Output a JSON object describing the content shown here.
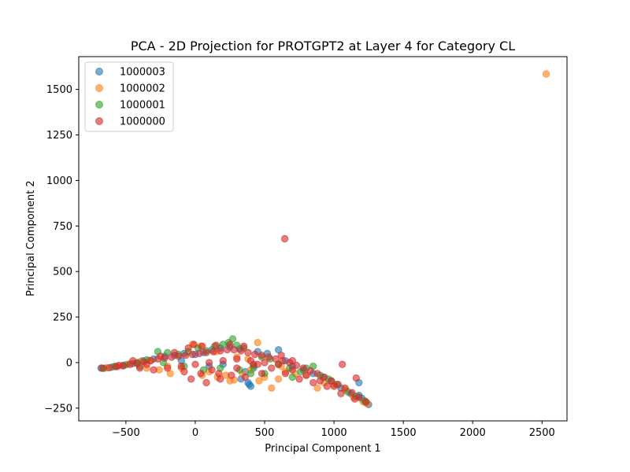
{
  "chart_data": {
    "type": "scatter",
    "title": "PCA - 2D Projection for PROTGPT2 at Layer 4 for Category CL",
    "xlabel": "Principal Component 1",
    "ylabel": "Principal Component 2",
    "xlim": [
      -840,
      2680
    ],
    "ylim": [
      -320,
      1680
    ],
    "xticks": [
      -500,
      0,
      500,
      1000,
      1500,
      2000,
      2500
    ],
    "xtick_labels": [
      "−500",
      "0",
      "500",
      "1000",
      "1500",
      "2000",
      "2500"
    ],
    "yticks": [
      -250,
      0,
      250,
      500,
      750,
      1000,
      1250,
      1500
    ],
    "ytick_labels": [
      "−250",
      "0",
      "250",
      "500",
      "750",
      "1000",
      "1250",
      "1500"
    ],
    "legend_position": "top-left",
    "series": [
      {
        "name": "1000003",
        "color": "#1f77b4",
        "points": [
          [
            -680,
            -30
          ],
          [
            -600,
            -25
          ],
          [
            -520,
            -15
          ],
          [
            -450,
            -5
          ],
          [
            -380,
            10
          ],
          [
            -300,
            20
          ],
          [
            -220,
            35
          ],
          [
            -150,
            40
          ],
          [
            -80,
            50
          ],
          [
            0,
            45
          ],
          [
            60,
            55
          ],
          [
            120,
            70
          ],
          [
            180,
            80
          ],
          [
            250,
            85
          ],
          [
            320,
            75
          ],
          [
            380,
            -110
          ],
          [
            400,
            -130
          ],
          [
            390,
            -120
          ],
          [
            450,
            60
          ],
          [
            520,
            50
          ],
          [
            600,
            70
          ],
          [
            650,
            10
          ],
          [
            700,
            -20
          ],
          [
            780,
            -40
          ],
          [
            850,
            -60
          ],
          [
            920,
            -80
          ],
          [
            980,
            -100
          ],
          [
            1050,
            -140
          ],
          [
            1120,
            -170
          ],
          [
            1180,
            -180
          ],
          [
            1200,
            -195
          ],
          [
            1230,
            -220
          ],
          [
            1250,
            -230
          ],
          [
            1180,
            -110
          ],
          [
            330,
            -90
          ],
          [
            360,
            -50
          ],
          [
            420,
            -30
          ],
          [
            100,
            -20
          ],
          [
            200,
            -10
          ],
          [
            -100,
            10
          ]
        ]
      },
      {
        "name": "1000002",
        "color": "#ff7f0e",
        "points": [
          [
            -640,
            -28
          ],
          [
            -560,
            -22
          ],
          [
            -480,
            -8
          ],
          [
            -400,
            5
          ],
          [
            -330,
            12
          ],
          [
            -260,
            -40
          ],
          [
            -180,
            -60
          ],
          [
            -100,
            -30
          ],
          [
            -20,
            100
          ],
          [
            40,
            90
          ],
          [
            100,
            -50
          ],
          [
            160,
            -80
          ],
          [
            220,
            -70
          ],
          [
            280,
            -95
          ],
          [
            340,
            -60
          ],
          [
            400,
            -40
          ],
          [
            450,
            110
          ],
          [
            500,
            -80
          ],
          [
            550,
            -140
          ],
          [
            600,
            -90
          ],
          [
            650,
            -50
          ],
          [
            720,
            -60
          ],
          [
            800,
            -70
          ],
          [
            880,
            -140
          ],
          [
            930,
            -110
          ],
          [
            1000,
            -120
          ],
          [
            1080,
            -150
          ],
          [
            1140,
            -190
          ],
          [
            1210,
            -215
          ],
          [
            1240,
            -225
          ],
          [
            2530,
            1585
          ],
          [
            150,
            60
          ],
          [
            300,
            30
          ],
          [
            380,
            20
          ],
          [
            -200,
            -20
          ],
          [
            -350,
            -30
          ],
          [
            50,
            -70
          ],
          [
            250,
            -100
          ],
          [
            460,
            -100
          ],
          [
            620,
            -20
          ]
        ]
      },
      {
        "name": "1000001",
        "color": "#2ca02c",
        "points": [
          [
            -660,
            -32
          ],
          [
            -580,
            -20
          ],
          [
            -500,
            -12
          ],
          [
            -420,
            0
          ],
          [
            -350,
            15
          ],
          [
            -270,
            60
          ],
          [
            -200,
            55
          ],
          [
            -120,
            45
          ],
          [
            -50,
            60
          ],
          [
            20,
            80
          ],
          [
            80,
            65
          ],
          [
            140,
            90
          ],
          [
            200,
            100
          ],
          [
            240,
            110
          ],
          [
            270,
            130
          ],
          [
            300,
            95
          ],
          [
            350,
            80
          ],
          [
            420,
            -20
          ],
          [
            480,
            30
          ],
          [
            540,
            20
          ],
          [
            600,
            -10
          ],
          [
            680,
            -30
          ],
          [
            760,
            -50
          ],
          [
            850,
            -20
          ],
          [
            900,
            -70
          ],
          [
            960,
            -90
          ],
          [
            1020,
            -120
          ],
          [
            1100,
            -160
          ],
          [
            1160,
            -185
          ],
          [
            1220,
            -210
          ],
          [
            400,
            -60
          ],
          [
            320,
            -40
          ],
          [
            180,
            -30
          ],
          [
            60,
            -40
          ],
          [
            -80,
            -20
          ],
          [
            -230,
            0
          ],
          [
            -400,
            -20
          ],
          [
            500,
            -60
          ],
          [
            700,
            -80
          ],
          [
            800,
            -30
          ]
        ]
      },
      {
        "name": "1000000",
        "color": "#d62728",
        "points": [
          [
            -670,
            -30
          ],
          [
            -620,
            -28
          ],
          [
            -570,
            -22
          ],
          [
            -520,
            -18
          ],
          [
            -470,
            -10
          ],
          [
            -420,
            -5
          ],
          [
            -370,
            5
          ],
          [
            -320,
            10
          ],
          [
            -270,
            20
          ],
          [
            -220,
            25
          ],
          [
            -170,
            30
          ],
          [
            -120,
            35
          ],
          [
            -70,
            40
          ],
          [
            -20,
            45
          ],
          [
            30,
            50
          ],
          [
            80,
            55
          ],
          [
            130,
            60
          ],
          [
            180,
            65
          ],
          [
            230,
            70
          ],
          [
            280,
            70
          ],
          [
            330,
            65
          ],
          [
            380,
            55
          ],
          [
            430,
            45
          ],
          [
            480,
            40
          ],
          [
            530,
            30
          ],
          [
            580,
            20
          ],
          [
            630,
            10
          ],
          [
            680,
            0
          ],
          [
            730,
            -15
          ],
          [
            780,
            -30
          ],
          [
            830,
            -45
          ],
          [
            880,
            -60
          ],
          [
            930,
            -80
          ],
          [
            980,
            -100
          ],
          [
            1030,
            -120
          ],
          [
            1080,
            -140
          ],
          [
            1130,
            -165
          ],
          [
            1180,
            -190
          ],
          [
            1230,
            -215
          ],
          [
            1060,
            -10
          ],
          [
            1160,
            -85
          ],
          [
            645,
            680
          ],
          [
            -400,
            -30
          ],
          [
            -300,
            -40
          ],
          [
            -200,
            -30
          ],
          [
            -100,
            -20
          ],
          [
            0,
            -10
          ],
          [
            100,
            0
          ],
          [
            200,
            10
          ],
          [
            300,
            20
          ],
          [
            400,
            10
          ],
          [
            500,
            0
          ],
          [
            600,
            -10
          ],
          [
            700,
            -40
          ],
          [
            800,
            -70
          ],
          [
            900,
            -100
          ],
          [
            1000,
            -130
          ],
          [
            -10,
            100
          ],
          [
            170,
            -60
          ],
          [
            300,
            -30
          ],
          [
            450,
            -10
          ],
          [
            550,
            -30
          ],
          [
            650,
            -60
          ],
          [
            750,
            -90
          ],
          [
            850,
            -110
          ],
          [
            950,
            -130
          ],
          [
            1050,
            -170
          ],
          [
            1150,
            -200
          ],
          [
            -550,
            -15
          ],
          [
            -450,
            10
          ],
          [
            -350,
            -10
          ],
          [
            -250,
            35
          ],
          [
            -150,
            55
          ],
          [
            -50,
            80
          ],
          [
            50,
            90
          ],
          [
            150,
            95
          ],
          [
            250,
            100
          ],
          [
            350,
            90
          ],
          [
            420,
            -10
          ],
          [
            -80,
            -50
          ],
          [
            120,
            -40
          ],
          [
            260,
            -70
          ],
          [
            40,
            -60
          ],
          [
            -30,
            -90
          ],
          [
            180,
            -90
          ],
          [
            80,
            -110
          ],
          [
            700,
            10
          ],
          [
            620,
            40
          ],
          [
            480,
            -60
          ],
          [
            360,
            -80
          ]
        ]
      }
    ]
  }
}
